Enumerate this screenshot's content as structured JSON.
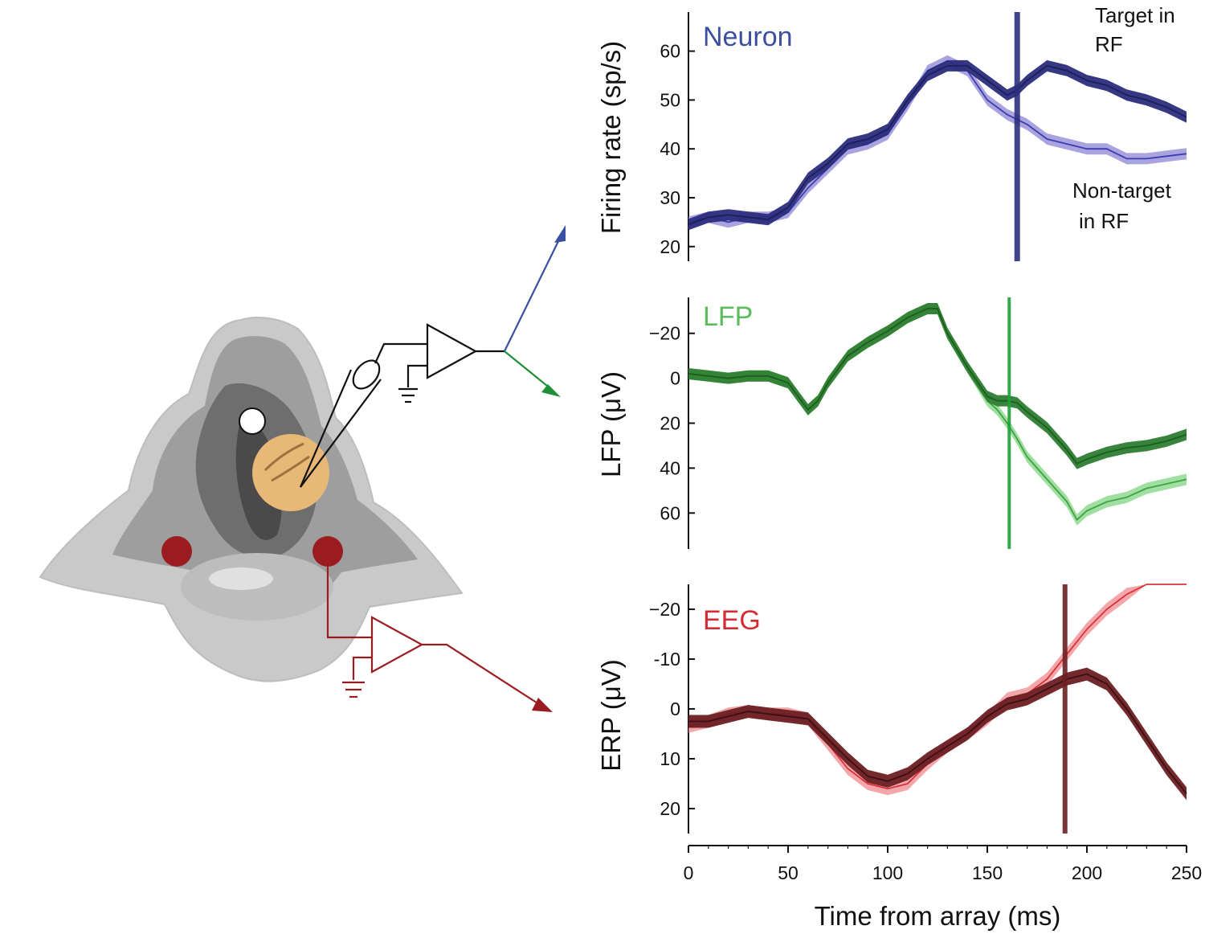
{
  "figure": {
    "xlabel": "Time from array (ms)",
    "x_ticks": [
      0,
      50,
      100,
      150,
      200,
      250
    ],
    "xlim": [
      0,
      250
    ]
  },
  "colors": {
    "neuron_dark": "#2b2d7d",
    "neuron_light": "#8c86d4",
    "lfp_dark": "#2e7d32",
    "lfp_light": "#7fd47f",
    "eeg_dark": "#6b1f22",
    "eeg_light": "#f08a8f",
    "neuron_arrow": "#3a4fa0",
    "lfp_arrow": "#1f8f3a",
    "eeg_circuit": "#9b1c20"
  },
  "chart_data": [
    {
      "type": "line",
      "title": "Neuron",
      "ylabel": "Firing rate (sp/s)",
      "ylim": [
        17,
        68
      ],
      "y_inverted": false,
      "y_ticks": [
        20,
        30,
        40,
        50,
        60
      ],
      "x": [
        0,
        10,
        20,
        30,
        40,
        50,
        60,
        70,
        80,
        90,
        100,
        110,
        120,
        130,
        140,
        150,
        160,
        165,
        170,
        180,
        190,
        200,
        210,
        220,
        230,
        240,
        250
      ],
      "series": [
        {
          "name": "Target in RF",
          "values": [
            24.5,
            26,
            26.5,
            26,
            25.5,
            28,
            34,
            37,
            41,
            42,
            44,
            50,
            55,
            57,
            57,
            54,
            51,
            52,
            54,
            57,
            56,
            54,
            53,
            51,
            50,
            48.5,
            46.5
          ]
        },
        {
          "name": "Non-target in RF",
          "values": [
            25,
            26,
            25,
            26,
            26,
            27,
            32,
            36,
            40,
            41,
            43,
            49,
            56,
            58,
            56,
            50,
            47,
            46,
            45,
            42,
            41,
            40,
            40,
            38,
            38,
            38.5,
            39
          ]
        }
      ],
      "vline": 165,
      "annotations": [
        "Target in RF",
        "Non-target in RF"
      ]
    },
    {
      "type": "line",
      "title": "LFP",
      "ylabel": "LFP (μV)",
      "ylim": [
        -36,
        76
      ],
      "y_inverted": true,
      "y_ticks": [
        -20,
        0,
        20,
        40,
        60
      ],
      "x": [
        0,
        10,
        20,
        30,
        40,
        50,
        55,
        60,
        65,
        70,
        80,
        90,
        100,
        110,
        120,
        125,
        130,
        140,
        150,
        155,
        160,
        165,
        170,
        180,
        190,
        195,
        200,
        210,
        220,
        230,
        240,
        250
      ],
      "series": [
        {
          "name": "Target in RF",
          "values": [
            -2,
            -1,
            0,
            -1,
            -1,
            2,
            8,
            14,
            10,
            2,
            -10,
            -16,
            -21,
            -27,
            -31,
            -31,
            -20,
            -5,
            8,
            10,
            10,
            11,
            15,
            22,
            32,
            38,
            36,
            33,
            31,
            30,
            28,
            25
          ]
        },
        {
          "name": "Non-target in RF",
          "values": [
            -2,
            -1,
            0,
            -1,
            -1,
            2,
            8,
            14,
            10,
            2,
            -10,
            -16,
            -21,
            -27,
            -31,
            -31,
            -20,
            -5,
            10,
            14,
            20,
            27,
            35,
            45,
            55,
            63,
            59,
            55,
            53,
            49,
            47,
            45
          ]
        }
      ],
      "vline": 161
    },
    {
      "type": "line",
      "title": "EEG",
      "ylabel": "ERP (μV)",
      "ylim": [
        -25,
        25
      ],
      "y_inverted": true,
      "y_ticks": [
        -20,
        -10,
        0,
        10,
        20
      ],
      "ytick_labels": [
        "−20",
        "-10",
        "0",
        "10",
        "20"
      ],
      "x": [
        0,
        10,
        20,
        30,
        40,
        50,
        60,
        70,
        80,
        90,
        100,
        110,
        120,
        130,
        140,
        150,
        160,
        170,
        180,
        190,
        200,
        210,
        220,
        230,
        240,
        250
      ],
      "series": [
        {
          "name": "Target in RF",
          "values": [
            2.5,
            2.5,
            1.5,
            0.5,
            1,
            1.5,
            2,
            6,
            10,
            13.5,
            14.5,
            13,
            10,
            7.5,
            5,
            1.5,
            -1,
            -2,
            -4,
            -6,
            -7,
            -5,
            0,
            6,
            12,
            17
          ]
        },
        {
          "name": "Non-target in RF",
          "values": [
            3.5,
            2.5,
            1,
            0.5,
            1,
            1,
            2,
            7,
            12,
            15,
            16,
            15,
            11,
            7.5,
            5,
            2,
            -2,
            -3,
            -6,
            -11,
            -16,
            -20,
            -23,
            -27,
            -30,
            -33
          ]
        }
      ],
      "vline": 189
    }
  ]
}
